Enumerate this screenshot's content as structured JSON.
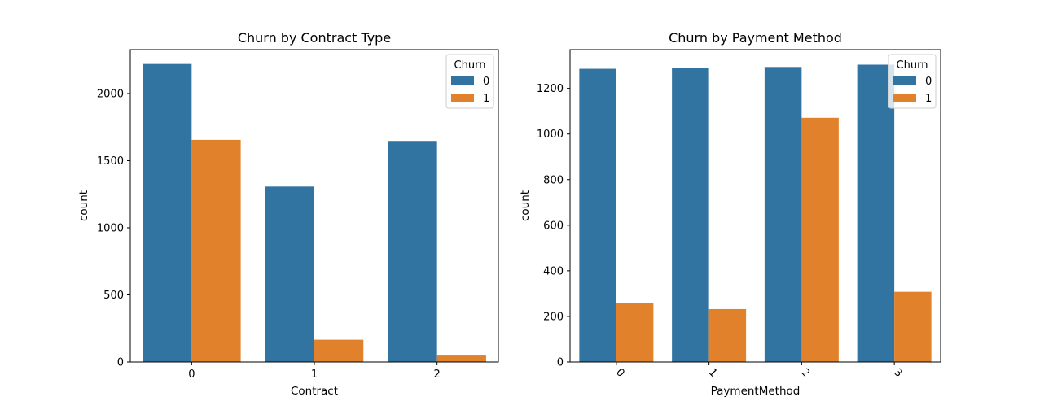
{
  "chart_data": [
    {
      "type": "bar",
      "title": "Churn by Contract Type",
      "xlabel": "Contract",
      "ylabel": "count",
      "categories": [
        "0",
        "1",
        "2"
      ],
      "series": [
        {
          "name": "0",
          "values": [
            2220,
            1307,
            1647
          ],
          "color": "#3274a1"
        },
        {
          "name": "1",
          "values": [
            1655,
            166,
            48
          ],
          "color": "#e1812c"
        }
      ],
      "ylim": [
        0,
        2327
      ],
      "yticks": [
        "0",
        "500",
        "1000",
        "1500",
        "2000"
      ],
      "ytick_values": [
        0,
        500,
        1000,
        1500,
        2000
      ],
      "legend": {
        "title": "Churn",
        "placement": "top-right"
      },
      "xtick_rotation": 0,
      "grid": false
    },
    {
      "type": "bar",
      "title": "Churn by Payment Method",
      "xlabel": "PaymentMethod",
      "ylabel": "count",
      "categories": [
        "0",
        "1",
        "2",
        "3"
      ],
      "series": [
        {
          "name": "0",
          "values": [
            1286,
            1290,
            1294,
            1304
          ],
          "color": "#3274a1"
        },
        {
          "name": "1",
          "values": [
            258,
            232,
            1071,
            308
          ],
          "color": "#e1812c"
        }
      ],
      "ylim": [
        0,
        1370
      ],
      "yticks": [
        "0",
        "200",
        "400",
        "600",
        "800",
        "1000",
        "1200"
      ],
      "ytick_values": [
        0,
        200,
        400,
        600,
        800,
        1000,
        1200
      ],
      "legend": {
        "title": "Churn",
        "placement": "top-right"
      },
      "xtick_rotation": -45,
      "grid": false
    }
  ]
}
